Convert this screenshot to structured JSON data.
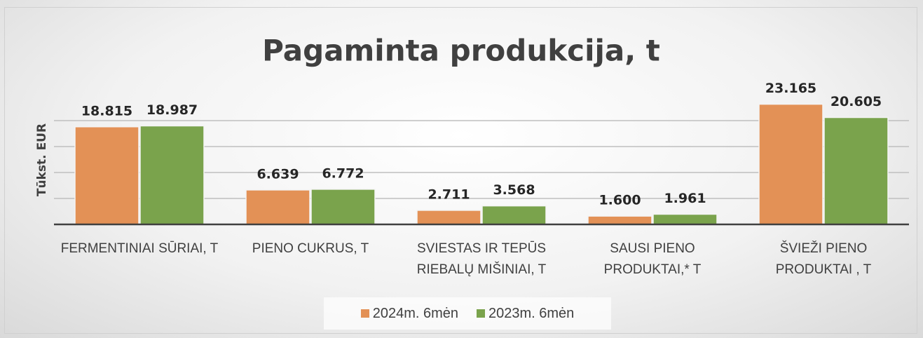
{
  "chart_data": {
    "type": "bar",
    "title": "Pagaminta produkcija, t",
    "y_label": "Tūkst. EUR",
    "categories": [
      "FERMENTINIAI SŪRIAI, T",
      "PIENO CUKRUS, T",
      "SVIESTAS IR TEPŪS RIEBALŲ MIŠINIAI, T",
      "SAUSI PIENO PRODUKTAI,* T",
      "ŠVIEŽI PIENO PRODUKTAI , T"
    ],
    "series": [
      {
        "name": "2024m. 6mėn",
        "color": "#e39156",
        "values": [
          18.815,
          6.639,
          2.711,
          1.6,
          23.165
        ],
        "value_labels": [
          "18.815",
          "6.639",
          "2.711",
          "1.600",
          "23.165"
        ]
      },
      {
        "name": "2023m. 6mėn",
        "color": "#7aa34c",
        "values": [
          18.987,
          6.772,
          3.568,
          1.961,
          20.605
        ],
        "value_labels": [
          "18.987",
          "6.772",
          "3.568",
          "1.961",
          "20.605"
        ]
      }
    ],
    "ylim": [
      0,
      25
    ],
    "yticks": [
      0,
      5,
      10,
      15,
      20
    ],
    "grid": true,
    "legend": "bottom"
  }
}
